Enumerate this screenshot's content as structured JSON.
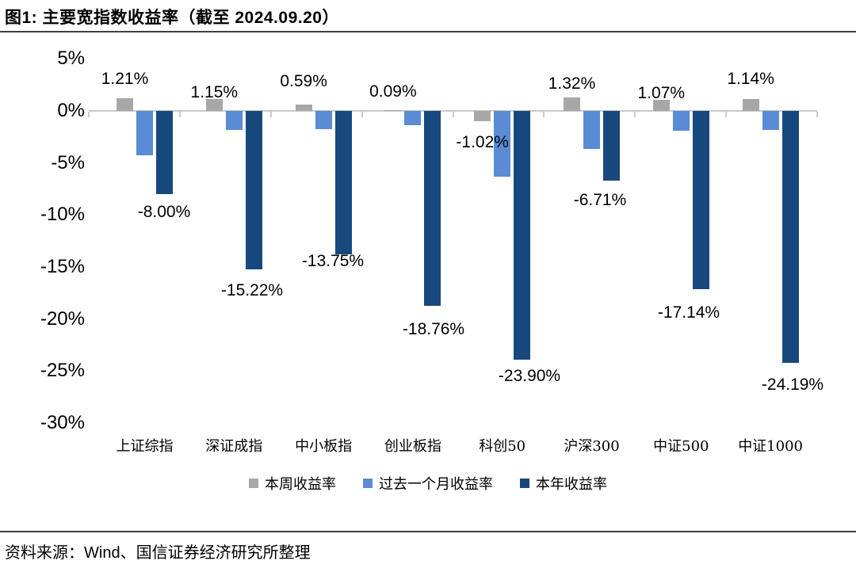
{
  "title": "图1: 主要宽指数收益率（截至 2024.09.20）",
  "source": "资料来源：Wind、国信证券经济研究所整理",
  "chart_data": {
    "type": "bar",
    "title": "主要宽指数收益率（截至 2024.09.20）",
    "categories": [
      "上证综指",
      "深证成指",
      "中小板指",
      "创业板指",
      "科创50",
      "沪深300",
      "中证500",
      "中证1000"
    ],
    "series": [
      {
        "name": "本周收益率",
        "color": "#a7a7a7",
        "values": [
          1.21,
          1.15,
          0.59,
          0.09,
          -1.02,
          1.32,
          1.07,
          1.14
        ],
        "labels": [
          "1.21%",
          "1.15%",
          "0.59%",
          "0.09%",
          "-1.02%",
          "1.32%",
          "1.07%",
          "1.14%"
        ]
      },
      {
        "name": "过去一个月收益率",
        "color": "#5a8bd5",
        "values": [
          -4.25,
          -1.85,
          -1.75,
          -1.4,
          -6.35,
          -3.65,
          -1.9,
          -1.8
        ],
        "labels": []
      },
      {
        "name": "本年收益率",
        "color": "#17497e",
        "values": [
          -8.0,
          -15.22,
          -13.75,
          -18.76,
          -23.9,
          -6.71,
          -17.14,
          -24.19
        ],
        "labels": [
          "-8.00%",
          "-15.22%",
          "-13.75%",
          "-18.76%",
          "-23.90%",
          "-6.71%",
          "-17.14%",
          "-24.19%"
        ]
      }
    ],
    "y_ticks": [
      {
        "label": "5%",
        "value": 5
      },
      {
        "label": "0%",
        "value": 0
      },
      {
        "label": "-5%",
        "value": -5
      },
      {
        "label": "-10%",
        "value": -10
      },
      {
        "label": "-15%",
        "value": -15
      },
      {
        "label": "-20%",
        "value": -20
      },
      {
        "label": "-25%",
        "value": -25
      },
      {
        "label": "-30%",
        "value": -30
      }
    ],
    "ylim": [
      -30,
      5
    ],
    "grid": false,
    "legend_position": "bottom",
    "value_unit": "%"
  }
}
